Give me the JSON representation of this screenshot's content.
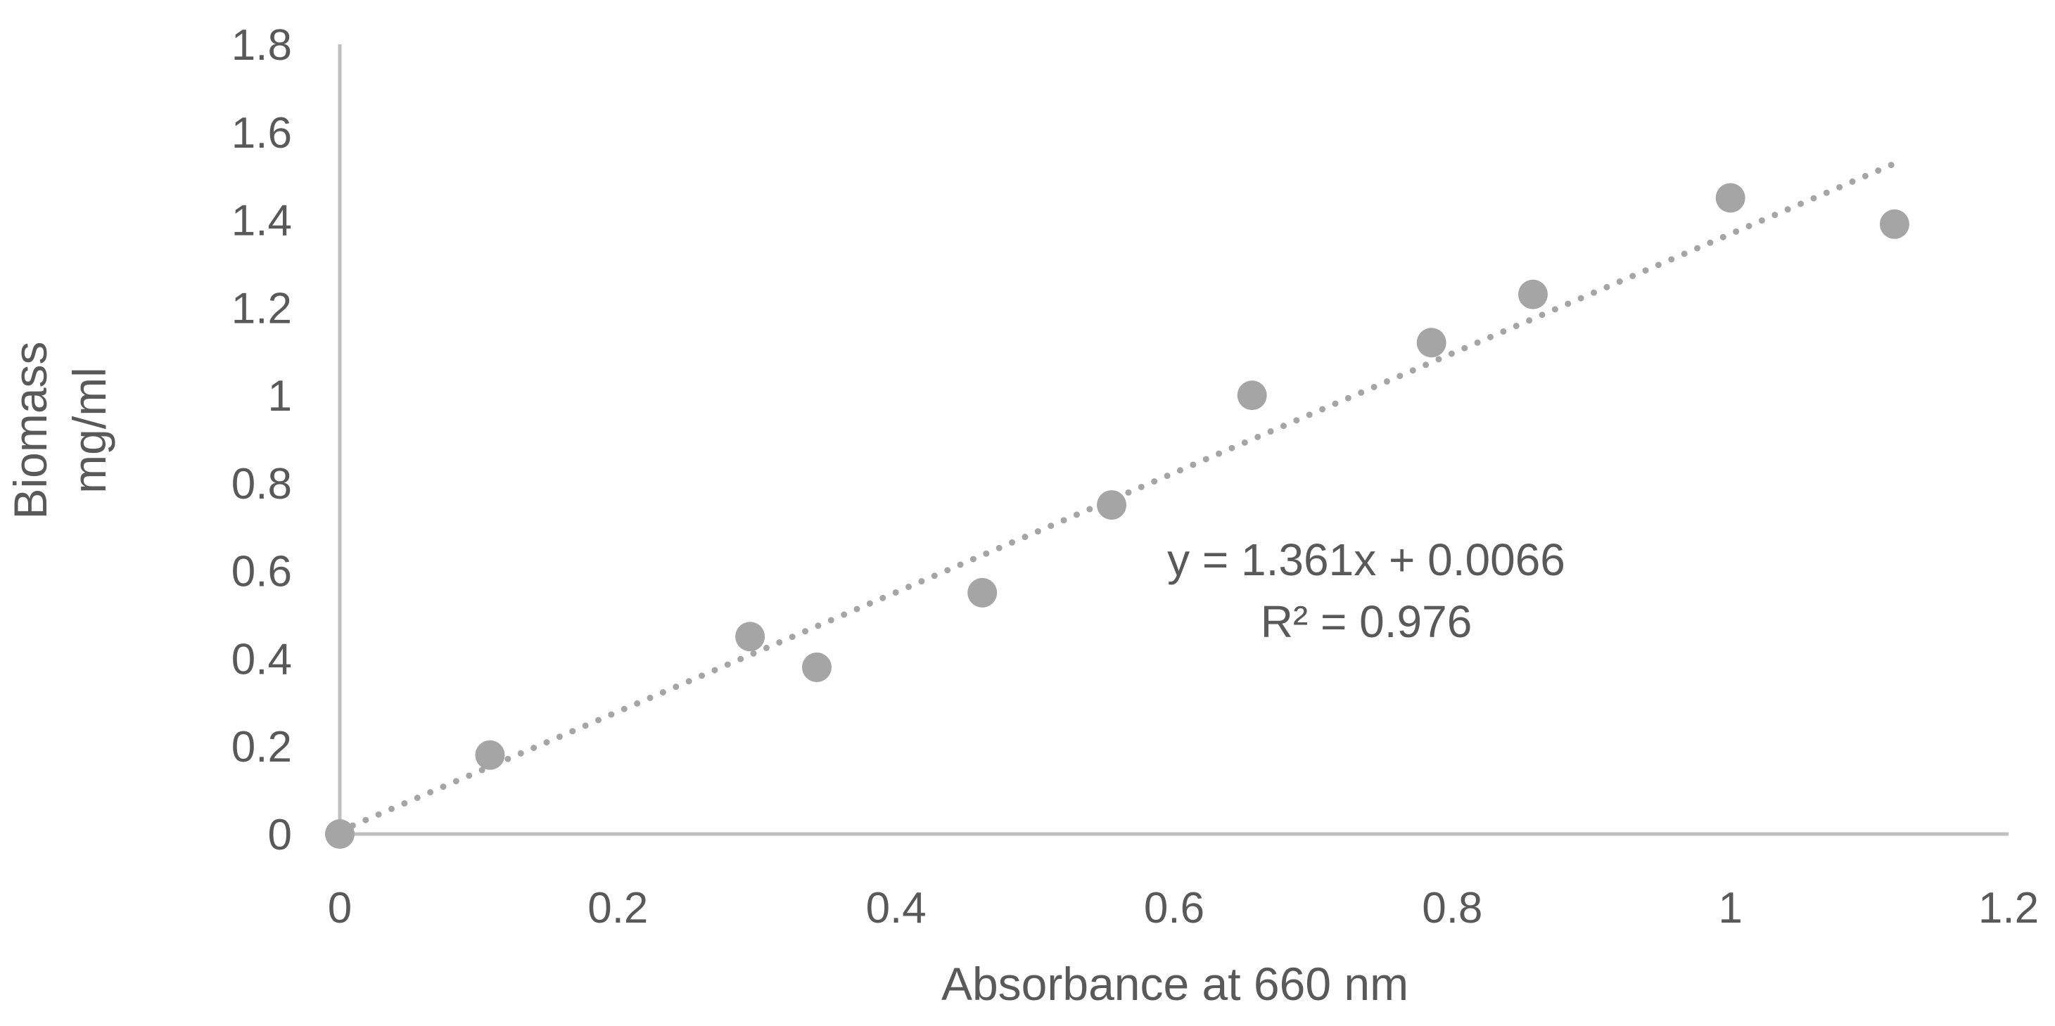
{
  "chart_data": {
    "type": "scatter",
    "title": "",
    "xlabel": "Absorbance at 660 nm",
    "ylabel_lines": [
      "Biomass",
      "mg/ml"
    ],
    "xlim": [
      0,
      1.2
    ],
    "ylim": [
      0,
      1.8
    ],
    "x_ticks": [
      0,
      0.2,
      0.4,
      0.6,
      0.8,
      1,
      1.2
    ],
    "x_tick_labels": [
      "0",
      "0.2",
      "0.4",
      "0.6",
      "0.8",
      "1",
      "1.2"
    ],
    "y_ticks": [
      0,
      0.2,
      0.4,
      0.6,
      0.8,
      1,
      1.2,
      1.4,
      1.6,
      1.8
    ],
    "y_tick_labels": [
      "0",
      "0.2",
      "0.4",
      "0.6",
      "0.8",
      "1",
      "1.2",
      "1.4",
      "1.6",
      "1.8"
    ],
    "grid": false,
    "series": [
      {
        "name": "Biomass",
        "x": [
          0,
          0.108,
          0.295,
          0.343,
          0.462,
          0.555,
          0.656,
          0.785,
          0.858,
          1.0,
          1.118
        ],
        "y": [
          0,
          0.18,
          0.45,
          0.38,
          0.55,
          0.75,
          1.0,
          1.12,
          1.23,
          1.45,
          1.39
        ]
      }
    ],
    "trendline": {
      "type": "linear",
      "slope": 1.361,
      "intercept": 0.0066,
      "x_range": [
        0,
        1.118
      ],
      "style": "dotted"
    },
    "annotations": [
      "y = 1.361x + 0.0066",
      "R² = 0.976"
    ],
    "colors": {
      "axis": "#bfbfbf",
      "marker": "#a5a5a5",
      "trendline": "#a5a5a5",
      "text": "#595959"
    }
  }
}
